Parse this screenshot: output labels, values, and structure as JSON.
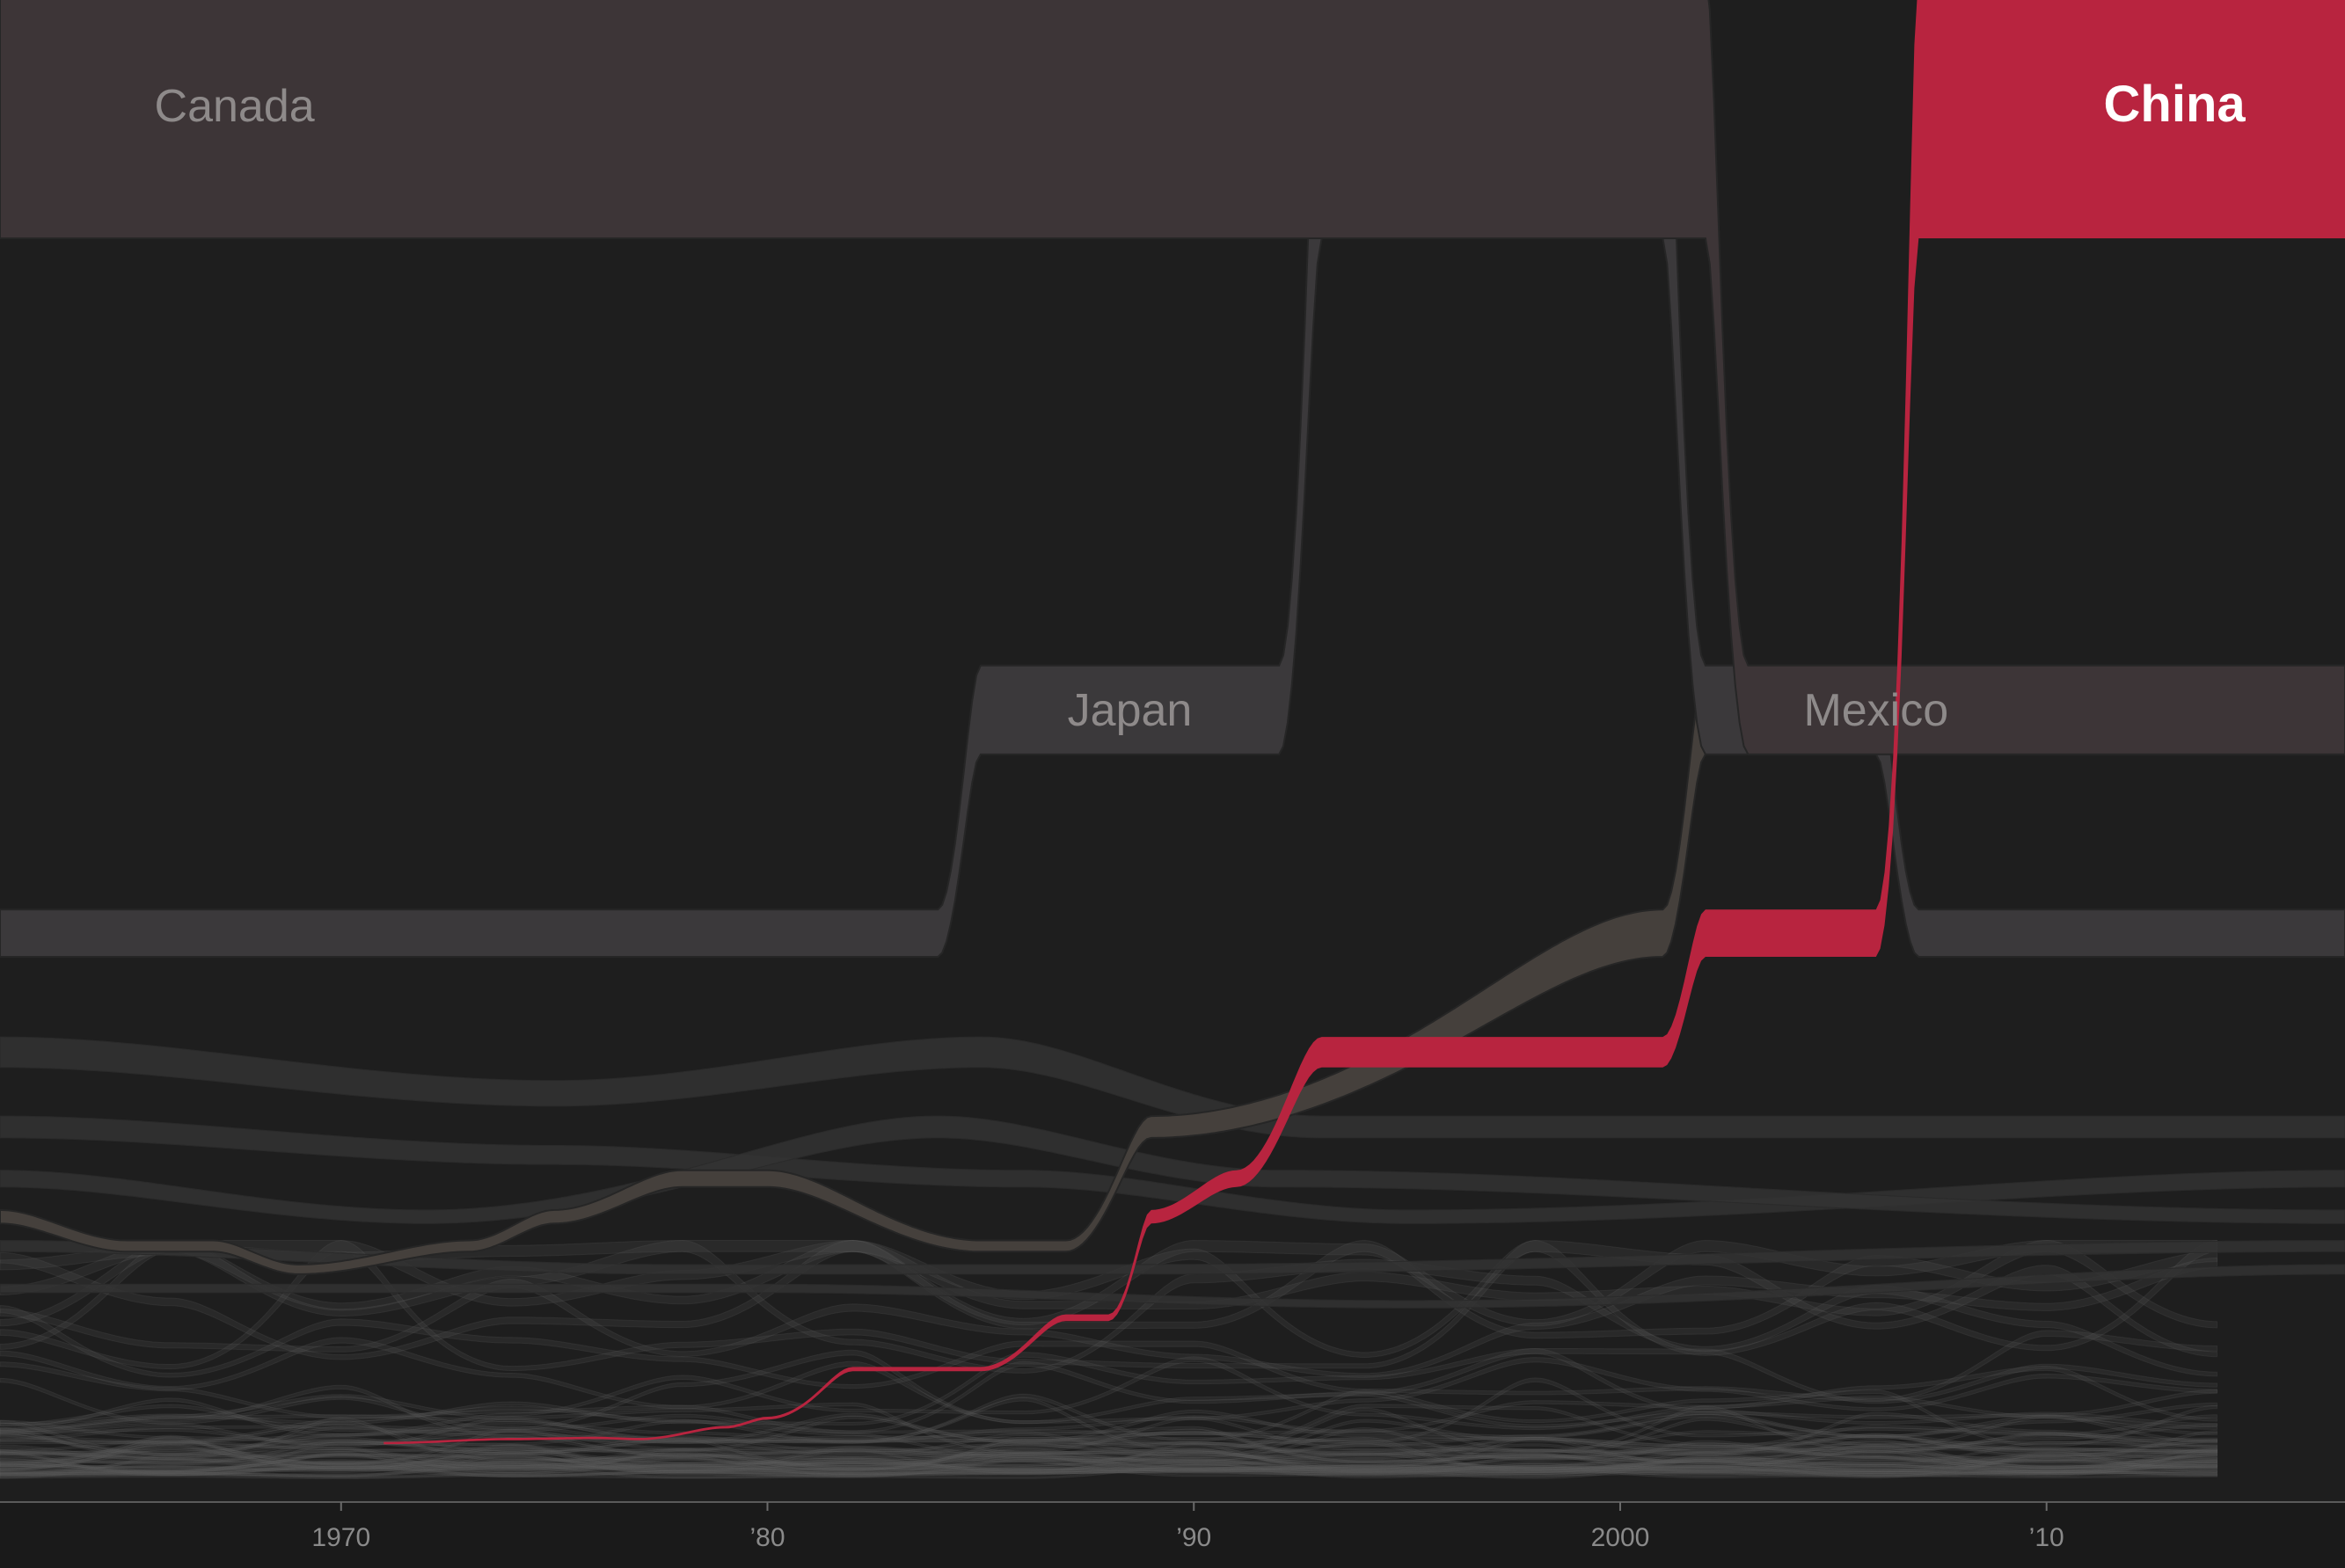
{
  "chart_data": {
    "type": "area",
    "subtype": "ranked-stream",
    "title": "",
    "xlabel": "",
    "ylabel": "",
    "xlim": [
      1962,
      2017
    ],
    "x_ticks": [
      {
        "value": 1970,
        "label": "1970"
      },
      {
        "value": 1980,
        "label": "’80"
      },
      {
        "value": 1990,
        "label": "’90"
      },
      {
        "value": 2000,
        "label": "2000"
      },
      {
        "value": 2010,
        "label": "’10"
      }
    ],
    "grid": false,
    "legend": "none",
    "colors": {
      "background": "#1e1e1e",
      "axis_band": "#1a1a1a",
      "china": "#b8243f",
      "canada": "#3d3537",
      "japan": "#3b393b",
      "mexico": "#45403c",
      "other_band": "#333333",
      "highlight_label": "#ffffff",
      "muted_label": "#8e8a8a"
    },
    "series": [
      {
        "name": "China",
        "highlight": true,
        "rank_points": [
          [
            1971,
            50
          ],
          [
            1974,
            46
          ],
          [
            1976,
            45
          ],
          [
            1977,
            46
          ],
          [
            1979,
            37
          ],
          [
            1980,
            32
          ],
          [
            1982,
            18
          ],
          [
            1984,
            18
          ],
          [
            1985,
            18
          ],
          [
            1987,
            12
          ],
          [
            1988,
            12
          ],
          [
            1989,
            7
          ],
          [
            1991,
            6
          ],
          [
            1993,
            4
          ],
          [
            2001,
            4
          ],
          [
            2002,
            3
          ],
          [
            2006,
            3
          ],
          [
            2007,
            1
          ],
          [
            2017,
            1
          ]
        ]
      },
      {
        "name": "Canada",
        "highlight": false,
        "rank_points": [
          [
            1962,
            1
          ],
          [
            2002,
            1
          ],
          [
            2003,
            2
          ],
          [
            2017,
            2
          ]
        ]
      },
      {
        "name": "Japan",
        "highlight": false,
        "rank_points": [
          [
            1962,
            3
          ],
          [
            1984,
            3
          ],
          [
            1985,
            2
          ],
          [
            1992,
            2
          ],
          [
            1993,
            1
          ],
          [
            2001,
            1
          ],
          [
            2002,
            2
          ],
          [
            2006,
            2
          ],
          [
            2007,
            3
          ],
          [
            2017,
            3
          ]
        ]
      },
      {
        "name": "Mexico",
        "highlight": false,
        "rank_points": [
          [
            1962,
            7
          ],
          [
            1965,
            8
          ],
          [
            1967,
            8
          ],
          [
            1969,
            9
          ],
          [
            1973,
            8
          ],
          [
            1975,
            7
          ],
          [
            1978,
            6
          ],
          [
            1980,
            6
          ],
          [
            1985,
            8
          ],
          [
            1987,
            8
          ],
          [
            1989,
            5
          ],
          [
            2001,
            3
          ],
          [
            2002,
            2
          ],
          [
            2017,
            2
          ]
        ]
      }
    ]
  }
}
